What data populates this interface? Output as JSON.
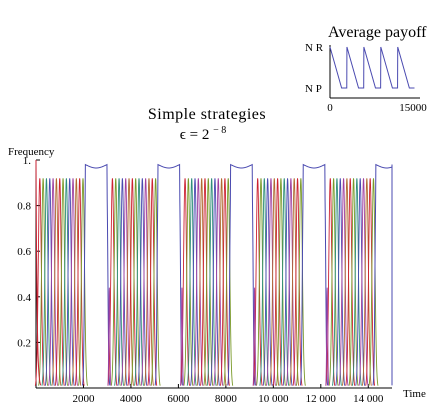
{
  "chart_data": [
    {
      "type": "line",
      "title": "Simple strategies",
      "subtitle_prefix": "ϵ = 2",
      "subtitle_exponent": "− 8",
      "ylabel": "Frequency",
      "xlabel": "Time",
      "xlim": [
        0,
        15000
      ],
      "ylim": [
        0,
        1
      ],
      "x_ticks": [
        2000,
        4000,
        6000,
        8000,
        10000,
        12000,
        14000
      ],
      "x_tick_labels": [
        "2000",
        "4000",
        "6000",
        "8000",
        "10 000",
        "12 000",
        "14 000"
      ],
      "y_ticks": [
        0.2,
        0.4,
        0.6,
        0.8,
        1.0
      ],
      "y_tick_labels": [
        "0.2",
        "0.4",
        "0.6",
        "0.8",
        "1."
      ],
      "grid": false,
      "cycle_starts": [
        0,
        3060,
        6120,
        9180,
        12240
      ],
      "oscillation_peak_spacing": 140,
      "oscillation_peak_height": 0.92,
      "oscillation_peaks_per_cycle": 14,
      "plateau_value": 0.98,
      "series_colors": [
        "#cc2233",
        "#7a9a2a",
        "#2f8f7a",
        "#4a4ab0",
        "#a040a0",
        "#b06a30"
      ]
    },
    {
      "type": "line",
      "title": "Average payoff",
      "xlim": [
        0,
        15000
      ],
      "x_tick_labels": [
        "0",
        "15000"
      ],
      "y_tick_labels": [
        "N  R",
        "N  P"
      ],
      "color": "#4a4ab0",
      "cycle_starts": [
        0,
        3060,
        6120,
        9180,
        12240
      ]
    }
  ]
}
